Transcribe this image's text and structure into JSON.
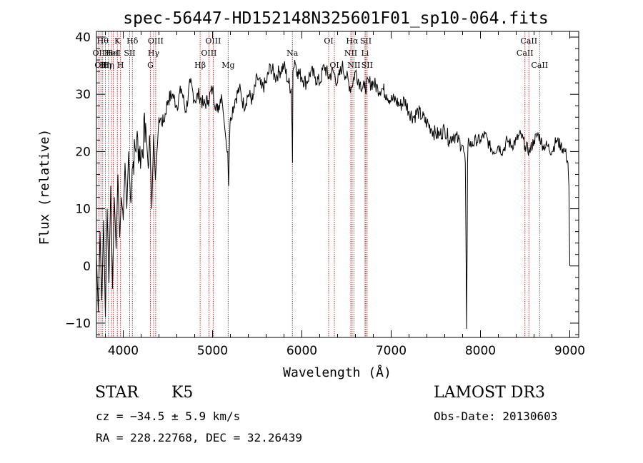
{
  "chart_data": {
    "type": "line",
    "title": "spec-56447-HD152148N325601F01_sp10-064.fits",
    "xlabel": "Wavelength (Å)",
    "ylabel": "Flux (relative)",
    "xlim": [
      3700,
      9100
    ],
    "ylim": [
      -12.5,
      41
    ],
    "xticks": [
      4000,
      5000,
      6000,
      7000,
      8000,
      9000
    ],
    "yticks": [
      -10,
      0,
      10,
      20,
      30,
      40
    ],
    "series": [
      {
        "name": "flux",
        "x": [
          3700,
          3720,
          3740,
          3760,
          3780,
          3800,
          3820,
          3840,
          3860,
          3880,
          3900,
          3920,
          3940,
          3960,
          3980,
          4000,
          4020,
          4040,
          4060,
          4080,
          4100,
          4150,
          4200,
          4250,
          4280,
          4300,
          4320,
          4340,
          4360,
          4400,
          4450,
          4500,
          4550,
          4600,
          4650,
          4700,
          4750,
          4800,
          4850,
          4900,
          4950,
          5000,
          5050,
          5100,
          5150,
          5170,
          5180,
          5190,
          5200,
          5250,
          5300,
          5350,
          5400,
          5450,
          5500,
          5550,
          5600,
          5650,
          5700,
          5750,
          5800,
          5850,
          5880,
          5890,
          5895,
          5900,
          5920,
          5950,
          6000,
          6050,
          6100,
          6150,
          6200,
          6250,
          6300,
          6350,
          6400,
          6450,
          6500,
          6550,
          6600,
          6650,
          6700,
          6750,
          6800,
          6850,
          6900,
          6950,
          7000,
          7050,
          7100,
          7150,
          7200,
          7250,
          7300,
          7350,
          7400,
          7450,
          7500,
          7550,
          7600,
          7650,
          7700,
          7750,
          7800,
          7830,
          7840,
          7845,
          7850,
          7855,
          7860,
          7870,
          7900,
          7950,
          8000,
          8050,
          8100,
          8150,
          8200,
          8250,
          8300,
          8350,
          8400,
          8450,
          8500,
          8550,
          8600,
          8650,
          8700,
          8750,
          8800,
          8850,
          8900,
          8950,
          8980,
          8990,
          9000
        ],
        "y": [
          2,
          -8,
          6,
          -6,
          8,
          -9,
          10,
          -3,
          14,
          -4,
          12,
          3,
          16,
          5,
          12,
          8,
          18,
          10,
          20,
          12,
          17,
          22,
          19,
          25,
          17,
          21,
          10,
          23,
          15,
          26,
          25,
          29,
          30,
          28,
          31,
          27,
          32,
          29,
          30,
          28,
          29,
          31,
          27,
          30,
          22,
          20,
          14,
          22,
          26,
          29,
          31,
          28,
          30,
          29,
          33,
          31,
          32,
          35,
          33,
          34,
          35,
          32,
          31,
          24,
          18,
          34,
          36,
          34,
          33,
          32,
          34,
          33,
          32,
          35,
          33,
          34,
          32,
          35,
          33,
          31,
          34,
          32,
          31,
          32,
          32,
          31,
          31,
          30,
          29,
          29,
          28,
          29,
          27,
          26,
          27,
          26,
          25,
          24,
          23,
          23,
          24,
          22,
          23,
          22,
          21,
          18,
          0,
          -11,
          2,
          18,
          21,
          22,
          21,
          22,
          22,
          23,
          21,
          20,
          21,
          20,
          22,
          21,
          22,
          23,
          21,
          20,
          22,
          23,
          21,
          21,
          20,
          22,
          21,
          20,
          18,
          14,
          0
        ]
      }
    ],
    "emission_lines": [
      {
        "wl": 3727,
        "label": "OII",
        "row": 2
      },
      {
        "wl": 3750,
        "label": "OII",
        "row": 3
      },
      {
        "wl": 3770,
        "label": "Hθ",
        "row": 1
      },
      {
        "wl": 3800,
        "label": "Hη",
        "row": 3
      },
      {
        "wl": 3835,
        "label": "Hη",
        "row": 3
      },
      {
        "wl": 3869,
        "label": "HeI",
        "row": 2
      },
      {
        "wl": 3889,
        "label": "HeI",
        "row": 2
      },
      {
        "wl": 3934,
        "label": "K",
        "row": 1
      },
      {
        "wl": 3969,
        "label": "H",
        "row": 3
      },
      {
        "wl": 4072,
        "label": "SII",
        "row": 2
      },
      {
        "wl": 4102,
        "label": "Hδ",
        "row": 1
      },
      {
        "wl": 4304,
        "label": "G",
        "row": 3
      },
      {
        "wl": 4340,
        "label": "Hγ",
        "row": 2
      },
      {
        "wl": 4363,
        "label": "OIII",
        "row": 1
      },
      {
        "wl": 4861,
        "label": "Hβ",
        "row": 3
      },
      {
        "wl": 4959,
        "label": "OIII",
        "row": 2
      },
      {
        "wl": 5007,
        "label": "OIII",
        "row": 1
      },
      {
        "wl": 5175,
        "label": "Mg",
        "row": 3
      },
      {
        "wl": 5894,
        "label": "Na",
        "row": 2
      },
      {
        "wl": 6300,
        "label": "OI",
        "row": 1
      },
      {
        "wl": 6364,
        "label": "OI",
        "row": 3
      },
      {
        "wl": 6548,
        "label": "NII",
        "row": 2
      },
      {
        "wl": 6563,
        "label": "Hα",
        "row": 1
      },
      {
        "wl": 6583,
        "label": "NII",
        "row": 3
      },
      {
        "wl": 6707,
        "label": "Li",
        "row": 2
      },
      {
        "wl": 6716,
        "label": "SII",
        "row": 1
      },
      {
        "wl": 6731,
        "label": "SII",
        "row": 3
      },
      {
        "wl": 8498,
        "label": "CaII",
        "row": 2
      },
      {
        "wl": 8542,
        "label": "CaII",
        "row": 1
      },
      {
        "wl": 8662,
        "label": "CaII",
        "row": 3
      }
    ]
  },
  "info": {
    "class": "STAR",
    "subclass": "K5",
    "redshift": "cz = −34.5 ± 5.9 km/s",
    "coords": "RA = 228.22768, DEC =  32.26439",
    "survey": "LAMOST DR3",
    "obs_date": "Obs-Date: 20130603"
  },
  "colors": {
    "line_marker": "#b22222",
    "spectrum": "#000000"
  }
}
